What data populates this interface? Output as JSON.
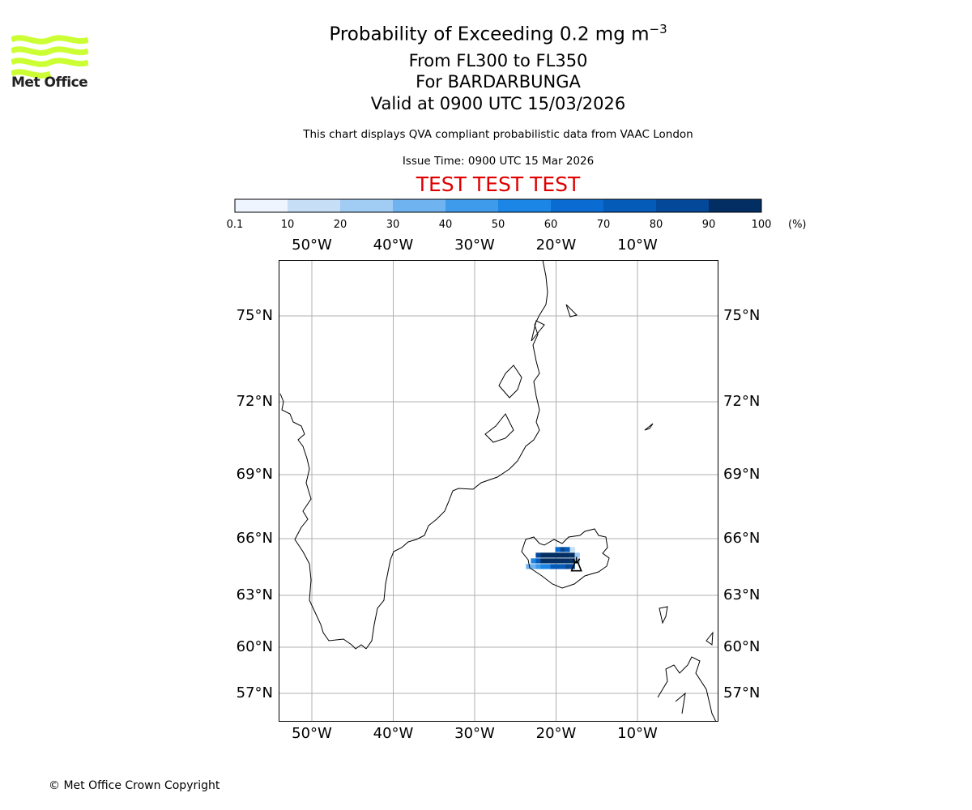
{
  "logo": {
    "text": "Met Office",
    "color": "#ccff33"
  },
  "title": {
    "main": "Probability of Exceeding 0.2 mg m",
    "main_sup": "−3",
    "level": "From FL300 to FL350",
    "volcano": "For BARDARBUNGA",
    "valid": "Valid at 0900 UTC 15/03/2026"
  },
  "subtitle": "This chart displays QVA compliant probabilistic data from VAAC London",
  "issue_time": "Issue Time: 0900 UTC 15 Mar 2026",
  "test_banner": "TEST TEST TEST",
  "test_color": "#e00000",
  "copyright": "© Met Office Crown Copyright",
  "chart_data": {
    "type": "heatmap",
    "title": "Probability of Exceeding 0.2 mg m−3",
    "colorbar": {
      "boundaries": [
        "0.1",
        "10",
        "20",
        "30",
        "40",
        "50",
        "60",
        "70",
        "80",
        "90",
        "100"
      ],
      "colors": [
        "#eef5ff",
        "#c6dff7",
        "#a1ccf4",
        "#6fb3f0",
        "#3e9bec",
        "#1c86e6",
        "#0a6cd2",
        "#055bb8",
        "#04489a",
        "#032e63"
      ],
      "unit": "(%)"
    },
    "map": {
      "lon_range": [
        -54,
        0
      ],
      "lat_range": [
        55.5,
        77
      ],
      "lon_ticks": [
        -50,
        -40,
        -30,
        -20,
        -10
      ],
      "lat_ticks": [
        57,
        60,
        63,
        66,
        69,
        72,
        75
      ],
      "lon_tick_labels": [
        "50°W",
        "40°W",
        "30°W",
        "20°W",
        "10°W"
      ],
      "lat_tick_labels": [
        "57°N",
        "60°N",
        "63°N",
        "66°N",
        "69°N",
        "72°N",
        "75°N"
      ],
      "grid": true,
      "volcano": {
        "name": "BARDARBUNGA",
        "lon": -17.5,
        "lat": 64.6
      },
      "probability_cells": [
        {
          "lon": -19.8,
          "lat": 65.3,
          "pct": 65
        },
        {
          "lon": -19.2,
          "lat": 65.3,
          "pct": 85
        },
        {
          "lon": -18.6,
          "lat": 65.3,
          "pct": 75
        },
        {
          "lon": -18.0,
          "lat": 65.3,
          "pct": 15
        },
        {
          "lon": -22.2,
          "lat": 65.0,
          "pct": 85
        },
        {
          "lon": -21.6,
          "lat": 65.0,
          "pct": 95
        },
        {
          "lon": -21.0,
          "lat": 65.0,
          "pct": 95
        },
        {
          "lon": -20.4,
          "lat": 65.0,
          "pct": 95
        },
        {
          "lon": -19.8,
          "lat": 65.0,
          "pct": 95
        },
        {
          "lon": -19.2,
          "lat": 65.0,
          "pct": 95
        },
        {
          "lon": -18.6,
          "lat": 65.0,
          "pct": 95
        },
        {
          "lon": -18.0,
          "lat": 65.0,
          "pct": 95
        },
        {
          "lon": -17.4,
          "lat": 65.0,
          "pct": 25
        },
        {
          "lon": -22.8,
          "lat": 64.7,
          "pct": 55
        },
        {
          "lon": -22.2,
          "lat": 64.7,
          "pct": 75
        },
        {
          "lon": -21.6,
          "lat": 64.7,
          "pct": 95
        },
        {
          "lon": -21.0,
          "lat": 64.7,
          "pct": 95
        },
        {
          "lon": -20.4,
          "lat": 64.7,
          "pct": 95
        },
        {
          "lon": -19.8,
          "lat": 64.7,
          "pct": 95
        },
        {
          "lon": -19.2,
          "lat": 64.7,
          "pct": 95
        },
        {
          "lon": -18.6,
          "lat": 64.7,
          "pct": 95
        },
        {
          "lon": -18.0,
          "lat": 64.7,
          "pct": 95
        },
        {
          "lon": -17.4,
          "lat": 64.7,
          "pct": 25
        },
        {
          "lon": -23.4,
          "lat": 64.4,
          "pct": 35
        },
        {
          "lon": -22.8,
          "lat": 64.4,
          "pct": 35
        },
        {
          "lon": -22.2,
          "lat": 64.4,
          "pct": 45
        },
        {
          "lon": -21.6,
          "lat": 64.4,
          "pct": 55
        },
        {
          "lon": -21.0,
          "lat": 64.4,
          "pct": 55
        },
        {
          "lon": -20.4,
          "lat": 64.4,
          "pct": 75
        },
        {
          "lon": -19.8,
          "lat": 64.4,
          "pct": 75
        },
        {
          "lon": -19.2,
          "lat": 64.4,
          "pct": 75
        },
        {
          "lon": -18.6,
          "lat": 64.4,
          "pct": 85
        },
        {
          "lon": -18.0,
          "lat": 64.4,
          "pct": 85
        }
      ]
    }
  }
}
